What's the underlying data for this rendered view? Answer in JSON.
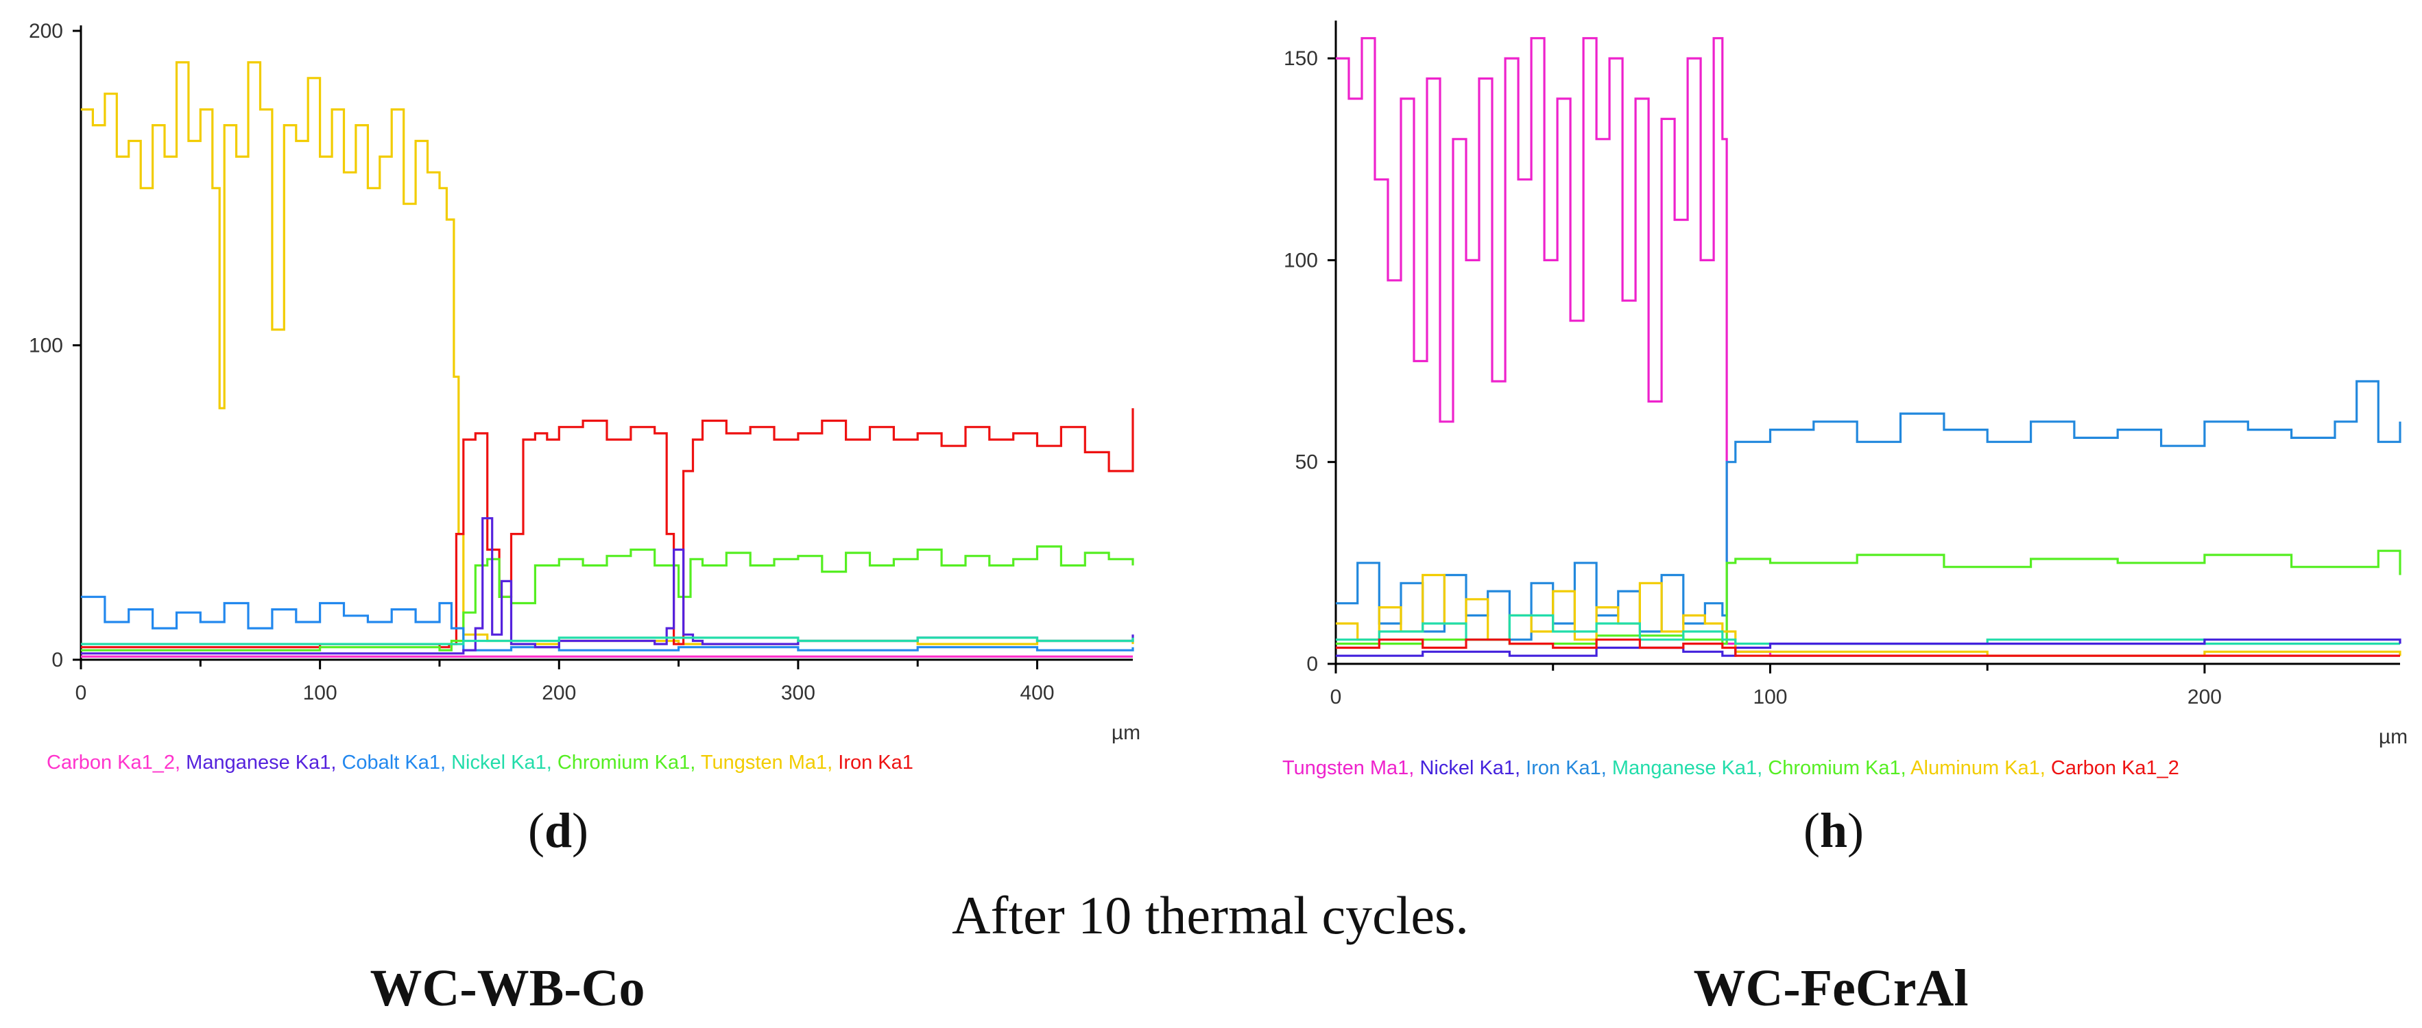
{
  "caption": "After 10 thermal cycles.",
  "chart_data": [
    {
      "type": "line",
      "panel_label": "d",
      "material": "WC-WB-Co",
      "xlabel": "µm",
      "xlim": [
        0,
        440
      ],
      "ylim": [
        0,
        200
      ],
      "xticks": [
        "0",
        "100",
        "200",
        "300",
        "400"
      ],
      "yticks": [
        "0",
        "100",
        "200"
      ],
      "legend": [
        {
          "name": "Carbon Ka1_2",
          "color": "#ff33cc"
        },
        {
          "name": "Manganese Ka1",
          "color": "#5522dd"
        },
        {
          "name": "Cobalt Ka1",
          "color": "#2288ee"
        },
        {
          "name": "Nickel Ka1",
          "color": "#22ddaa"
        },
        {
          "name": "Chromium Ka1",
          "color": "#55ee22"
        },
        {
          "name": "Tungsten Ma1",
          "color": "#f2cc00"
        },
        {
          "name": "Iron Ka1",
          "color": "#ee1111"
        }
      ],
      "series": [
        {
          "name": "Tungsten Ma1",
          "color": "#f2cc00",
          "x": [
            0,
            5,
            10,
            15,
            20,
            25,
            30,
            35,
            40,
            45,
            50,
            55,
            58,
            60,
            65,
            70,
            75,
            80,
            85,
            90,
            95,
            100,
            105,
            110,
            115,
            120,
            125,
            130,
            135,
            140,
            145,
            150,
            153,
            156,
            158,
            160,
            170,
            180,
            200,
            250,
            300,
            350,
            400,
            440
          ],
          "y": [
            175,
            170,
            180,
            160,
            165,
            150,
            170,
            160,
            190,
            165,
            175,
            150,
            80,
            170,
            160,
            190,
            175,
            105,
            170,
            165,
            185,
            160,
            175,
            155,
            170,
            150,
            160,
            175,
            145,
            165,
            155,
            150,
            140,
            90,
            40,
            8,
            6,
            5,
            6,
            5,
            6,
            5,
            6,
            5
          ]
        },
        {
          "name": "Iron Ka1",
          "color": "#ee1111",
          "x": [
            0,
            50,
            100,
            150,
            154,
            157,
            160,
            165,
            170,
            175,
            180,
            185,
            190,
            195,
            200,
            210,
            220,
            230,
            240,
            245,
            248,
            252,
            256,
            260,
            270,
            280,
            290,
            300,
            310,
            320,
            330,
            340,
            350,
            360,
            370,
            380,
            390,
            400,
            410,
            420,
            430,
            440
          ],
          "y": [
            4,
            4,
            5,
            4,
            5,
            40,
            70,
            72,
            35,
            20,
            40,
            70,
            72,
            70,
            74,
            76,
            70,
            74,
            72,
            40,
            5,
            60,
            70,
            76,
            72,
            74,
            70,
            72,
            76,
            70,
            74,
            70,
            72,
            68,
            74,
            70,
            72,
            68,
            74,
            66,
            60,
            80
          ]
        },
        {
          "name": "Chromium Ka1",
          "color": "#55ee22",
          "x": [
            0,
            50,
            100,
            150,
            155,
            160,
            165,
            170,
            175,
            180,
            190,
            200,
            210,
            220,
            230,
            240,
            250,
            255,
            260,
            270,
            280,
            290,
            300,
            310,
            320,
            330,
            340,
            350,
            360,
            370,
            380,
            390,
            400,
            410,
            420,
            430,
            440
          ],
          "y": [
            3,
            3,
            4,
            3,
            6,
            15,
            30,
            32,
            20,
            18,
            30,
            32,
            30,
            33,
            35,
            30,
            20,
            32,
            30,
            34,
            30,
            32,
            33,
            28,
            34,
            30,
            32,
            35,
            30,
            33,
            30,
            32,
            36,
            30,
            34,
            32,
            30
          ]
        },
        {
          "name": "Cobalt Ka1",
          "color": "#2288ee",
          "x": [
            0,
            10,
            20,
            30,
            40,
            50,
            60,
            70,
            80,
            90,
            100,
            110,
            120,
            130,
            140,
            150,
            155,
            160,
            180,
            200,
            250,
            300,
            350,
            400,
            440
          ],
          "y": [
            20,
            12,
            16,
            10,
            15,
            12,
            18,
            10,
            16,
            12,
            18,
            14,
            12,
            16,
            12,
            18,
            10,
            3,
            4,
            3,
            4,
            3,
            4,
            3,
            4
          ]
        },
        {
          "name": "Manganese Ka1",
          "color": "#5522dd",
          "x": [
            0,
            100,
            150,
            160,
            165,
            168,
            172,
            176,
            180,
            190,
            200,
            240,
            245,
            248,
            252,
            256,
            260,
            300,
            350,
            400,
            440
          ],
          "y": [
            2,
            2,
            2,
            3,
            10,
            45,
            8,
            25,
            5,
            4,
            6,
            5,
            10,
            35,
            8,
            6,
            5,
            6,
            7,
            6,
            8
          ]
        },
        {
          "name": "Nickel Ka1",
          "color": "#22ddaa",
          "x": [
            0,
            100,
            150,
            160,
            200,
            250,
            300,
            350,
            400,
            440
          ],
          "y": [
            5,
            5,
            5,
            6,
            7,
            7,
            6,
            7,
            6,
            7
          ]
        },
        {
          "name": "Carbon Ka1_2",
          "color": "#ff33cc",
          "x": [
            0,
            100,
            150,
            160,
            200,
            250,
            300,
            350,
            400,
            440
          ],
          "y": [
            1,
            1,
            1,
            1,
            1,
            1,
            1,
            1,
            1,
            1
          ]
        }
      ]
    },
    {
      "type": "line",
      "panel_label": "h",
      "material": "WC-FeCrAl",
      "xlabel": "µm",
      "xlim": [
        0,
        245
      ],
      "ylim": [
        0,
        158
      ],
      "xticks": [
        "0",
        "100",
        "200"
      ],
      "yticks": [
        "0",
        "50",
        "100",
        "150"
      ],
      "legend": [
        {
          "name": "Tungsten Ma1",
          "color": "#ee22cc"
        },
        {
          "name": "Nickel Ka1",
          "color": "#4422dd"
        },
        {
          "name": "Iron Ka1",
          "color": "#2288dd"
        },
        {
          "name": "Manganese Ka1",
          "color": "#22ddaa"
        },
        {
          "name": "Chromium Ka1",
          "color": "#55ee22"
        },
        {
          "name": "Aluminum Ka1",
          "color": "#f2cc00"
        },
        {
          "name": "Carbon Ka1_2",
          "color": "#ee1111"
        }
      ],
      "series": [
        {
          "name": "Tungsten Ma1",
          "color": "#ee22cc",
          "x": [
            0,
            3,
            6,
            9,
            12,
            15,
            18,
            21,
            24,
            27,
            30,
            33,
            36,
            39,
            42,
            45,
            48,
            51,
            54,
            57,
            60,
            63,
            66,
            69,
            72,
            75,
            78,
            81,
            84,
            87,
            89,
            90,
            92,
            100,
            150,
            200,
            245
          ],
          "y": [
            150,
            140,
            155,
            120,
            95,
            140,
            75,
            145,
            60,
            130,
            100,
            145,
            70,
            150,
            120,
            155,
            100,
            140,
            85,
            155,
            130,
            150,
            90,
            140,
            65,
            135,
            110,
            150,
            100,
            155,
            130,
            5,
            3,
            2,
            2,
            2,
            2
          ]
        },
        {
          "name": "Iron Ka1",
          "color": "#2288dd",
          "x": [
            0,
            5,
            10,
            15,
            20,
            25,
            30,
            35,
            40,
            45,
            50,
            55,
            60,
            65,
            70,
            75,
            80,
            85,
            89,
            90,
            92,
            100,
            110,
            120,
            130,
            140,
            150,
            160,
            170,
            180,
            190,
            200,
            210,
            220,
            230,
            235,
            240,
            245
          ],
          "y": [
            15,
            25,
            10,
            20,
            8,
            22,
            12,
            18,
            6,
            20,
            10,
            25,
            12,
            18,
            8,
            22,
            10,
            15,
            12,
            50,
            55,
            58,
            60,
            55,
            62,
            58,
            55,
            60,
            56,
            58,
            54,
            60,
            58,
            56,
            60,
            70,
            55,
            60
          ]
        },
        {
          "name": "Chromium Ka1",
          "color": "#55ee22",
          "x": [
            0,
            20,
            40,
            60,
            80,
            89,
            90,
            92,
            100,
            120,
            140,
            160,
            180,
            200,
            220,
            240,
            245
          ],
          "y": [
            5,
            6,
            5,
            7,
            6,
            5,
            25,
            26,
            25,
            27,
            24,
            26,
            25,
            27,
            24,
            28,
            22
          ]
        },
        {
          "name": "Aluminum Ka1",
          "color": "#f2cc00",
          "x": [
            0,
            5,
            10,
            15,
            20,
            25,
            30,
            35,
            40,
            45,
            50,
            55,
            60,
            65,
            70,
            75,
            80,
            85,
            89,
            92,
            100,
            150,
            200,
            245
          ],
          "y": [
            10,
            6,
            14,
            8,
            22,
            10,
            16,
            6,
            12,
            8,
            18,
            6,
            14,
            10,
            20,
            8,
            12,
            10,
            8,
            3,
            3,
            2,
            3,
            2
          ]
        },
        {
          "name": "Manganese Ka1",
          "color": "#22ddaa",
          "x": [
            0,
            10,
            20,
            30,
            40,
            50,
            60,
            70,
            80,
            89,
            92,
            100,
            150,
            200,
            245
          ],
          "y": [
            6,
            8,
            10,
            6,
            12,
            8,
            10,
            6,
            8,
            6,
            5,
            5,
            6,
            5,
            5
          ]
        },
        {
          "name": "Nickel Ka1",
          "color": "#4422dd",
          "x": [
            0,
            20,
            40,
            60,
            80,
            89,
            92,
            100,
            150,
            200,
            245
          ],
          "y": [
            2,
            3,
            2,
            4,
            3,
            2,
            4,
            5,
            5,
            6,
            5
          ]
        },
        {
          "name": "Carbon Ka1_2",
          "color": "#ee1111",
          "x": [
            0,
            10,
            20,
            30,
            40,
            50,
            60,
            70,
            80,
            89,
            92,
            100,
            150,
            200,
            245
          ],
          "y": [
            4,
            6,
            4,
            6,
            5,
            4,
            6,
            4,
            5,
            4,
            2,
            2,
            2,
            2,
            2
          ]
        }
      ]
    }
  ]
}
